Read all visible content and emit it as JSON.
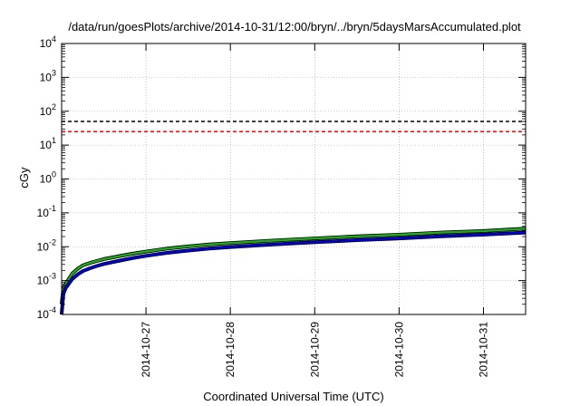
{
  "chart_data": {
    "type": "line",
    "title": "/data/run/goesPlots/archive/2014-10-31/12:00/bryn/../bryn/5daysMarsAccumulated.plot",
    "xlabel": "Coordinated Universal Time (UTC)",
    "ylabel": "cGy",
    "yscale": "log",
    "ylim_exponents": [
      -4,
      4
    ],
    "y_ticks": [
      {
        "base": "10",
        "exp": "-4",
        "value": 0.0001
      },
      {
        "base": "10",
        "exp": "-3",
        "value": 0.001
      },
      {
        "base": "10",
        "exp": "-2",
        "value": 0.01
      },
      {
        "base": "10",
        "exp": "-1",
        "value": 0.1
      },
      {
        "base": "10",
        "exp": "0",
        "value": 1
      },
      {
        "base": "10",
        "exp": "1",
        "value": 10
      },
      {
        "base": "10",
        "exp": "2",
        "value": 100
      },
      {
        "base": "10",
        "exp": "3",
        "value": 1000
      },
      {
        "base": "10",
        "exp": "4",
        "value": 10000
      }
    ],
    "xlim": [
      "2014-10-26 00:00",
      "2014-10-31 12:00"
    ],
    "x_ticks": [
      "2014-10-27",
      "2014-10-28",
      "2014-10-29",
      "2014-10-30",
      "2014-10-31"
    ],
    "grid": true,
    "hlines": [
      {
        "value": 50,
        "color": "#000000",
        "style": "dashed"
      },
      {
        "value": 25,
        "color": "#ff0000",
        "style": "dashed"
      }
    ],
    "series": [
      {
        "color": "#22aa22",
        "x": [
          "2014-10-26 00:00",
          "2014-10-26 00:30",
          "2014-10-26 01:10",
          "2014-10-26 02:00",
          "2014-10-26 03:00",
          "2014-10-26 04:30",
          "2014-10-26 06:00",
          "2014-10-26 08:00",
          "2014-10-26 10:00",
          "2014-10-26 12:00",
          "2014-10-26 16:00",
          "2014-10-26 20:00",
          "2014-10-27 00:00",
          "2014-10-27 06:00",
          "2014-10-27 12:00",
          "2014-10-27 18:00",
          "2014-10-28 00:00",
          "2014-10-28 12:00",
          "2014-10-29 00:00",
          "2014-10-29 12:00",
          "2014-10-30 00:00",
          "2014-10-30 12:00",
          "2014-10-31 00:00",
          "2014-10-31 12:00"
        ],
        "y": [
          0.0002,
          0.0006,
          0.0008,
          0.0011,
          0.0016,
          0.0022,
          0.0028,
          0.0033,
          0.0038,
          0.0043,
          0.0052,
          0.0062,
          0.0072,
          0.0088,
          0.0102,
          0.0116,
          0.0128,
          0.0152,
          0.0176,
          0.0202,
          0.0226,
          0.0262,
          0.0292,
          0.0342
        ]
      },
      {
        "color": "#0000dd",
        "x": [
          "2014-10-26 00:00",
          "2014-10-26 00:30",
          "2014-10-26 01:10",
          "2014-10-26 02:00",
          "2014-10-26 03:00",
          "2014-10-26 04:30",
          "2014-10-26 06:00",
          "2014-10-26 08:00",
          "2014-10-26 10:00",
          "2014-10-26 12:00",
          "2014-10-26 16:00",
          "2014-10-26 20:00",
          "2014-10-27 00:00",
          "2014-10-27 06:00",
          "2014-10-27 12:00",
          "2014-10-27 18:00",
          "2014-10-28 00:00",
          "2014-10-28 12:00",
          "2014-10-29 00:00",
          "2014-10-29 12:00",
          "2014-10-30 00:00",
          "2014-10-30 12:00",
          "2014-10-31 00:00",
          "2014-10-31 12:00"
        ],
        "y": [
          0.0001,
          0.0004,
          0.0006,
          0.0008,
          0.0011,
          0.0015,
          0.0019,
          0.0023,
          0.0027,
          0.0031,
          0.0038,
          0.0046,
          0.0054,
          0.0066,
          0.0077,
          0.0088,
          0.0098,
          0.0117,
          0.0136,
          0.0156,
          0.0176,
          0.0204,
          0.0228,
          0.0262
        ]
      }
    ]
  }
}
